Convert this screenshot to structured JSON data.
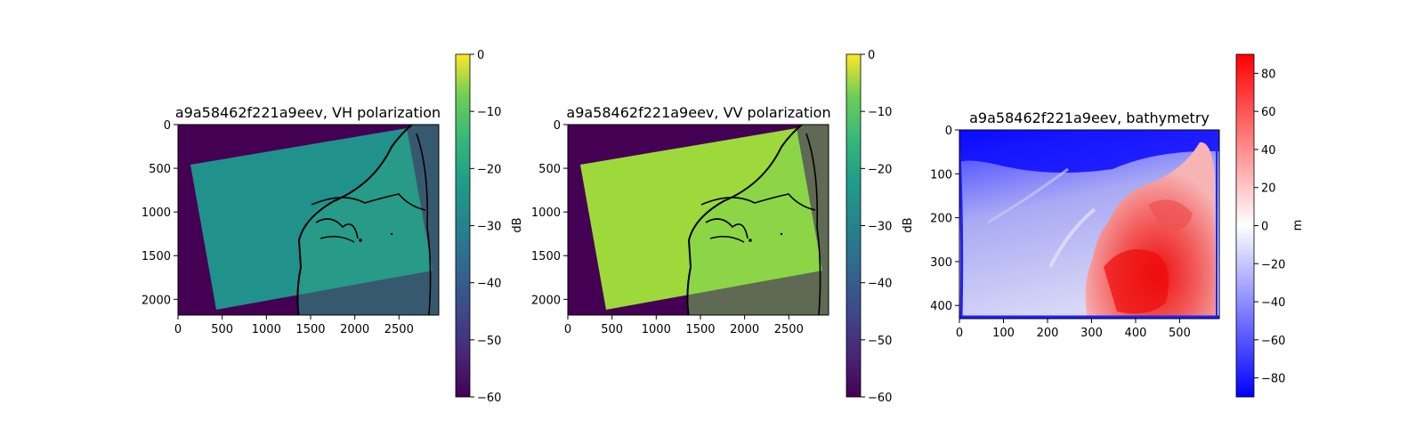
{
  "chart_data": [
    {
      "type": "heatmap",
      "title": "a9a58462f221a9eev, VH polarization",
      "xlim": [
        0,
        2950
      ],
      "ylim": [
        2180,
        0
      ],
      "xticks": [
        0,
        500,
        1000,
        1500,
        2000,
        2500
      ],
      "yticks": [
        0,
        500,
        1000,
        1500,
        2000
      ],
      "colorbar": {
        "label": "dB",
        "colormap": "viridis",
        "range": [
          -60,
          0
        ],
        "ticks": [
          0,
          -10,
          -20,
          -30,
          -40,
          -50,
          -60
        ],
        "tick_labels": [
          "0",
          "−10",
          "−20",
          "−30",
          "−40",
          "−50",
          "−60"
        ]
      },
      "background_value_db": -60,
      "swath_value_db": -26,
      "swath_corners": [
        [
          2590,
          50
        ],
        [
          2880,
          1680
        ],
        [
          440,
          2120
        ],
        [
          150,
          460
        ]
      ]
    },
    {
      "type": "heatmap",
      "title": "a9a58462f221a9eev, VV polarization",
      "xlim": [
        0,
        2950
      ],
      "ylim": [
        2180,
        0
      ],
      "xticks": [
        0,
        500,
        1000,
        1500,
        2000,
        2500
      ],
      "yticks": [
        0,
        500,
        1000,
        1500,
        2000
      ],
      "colorbar": {
        "label": "dB",
        "colormap": "viridis",
        "range": [
          -60,
          0
        ],
        "ticks": [
          0,
          -10,
          -20,
          -30,
          -40,
          -50,
          -60
        ],
        "tick_labels": [
          "0",
          "−10",
          "−20",
          "−30",
          "−40",
          "−50",
          "−60"
        ]
      },
      "background_value_db": -60,
      "swath_value_db": -12,
      "swath_corners": [
        [
          2590,
          50
        ],
        [
          2880,
          1680
        ],
        [
          440,
          2120
        ],
        [
          150,
          460
        ]
      ]
    },
    {
      "type": "heatmap",
      "title": "a9a58462f221a9eev, bathymetry",
      "xlim": [
        0,
        590
      ],
      "ylim": [
        430,
        0
      ],
      "xticks": [
        0,
        100,
        200,
        300,
        400,
        500
      ],
      "yticks": [
        0,
        100,
        200,
        300,
        400
      ],
      "colorbar": {
        "label": "m",
        "colormap": "bwr",
        "range": [
          -90,
          90
        ],
        "ticks": [
          80,
          60,
          40,
          20,
          0,
          -20,
          -40,
          -60,
          -80
        ],
        "tick_labels": [
          "80",
          "60",
          "40",
          "20",
          "0",
          "−20",
          "−40",
          "−60",
          "−80"
        ]
      }
    }
  ]
}
